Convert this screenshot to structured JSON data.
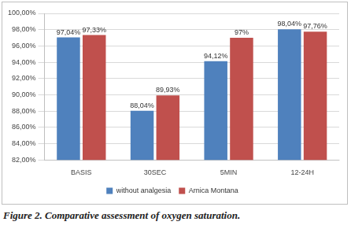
{
  "chart_data": {
    "type": "bar",
    "title": "Figure 2. Comparative assessment of oxygen saturation.",
    "categories": [
      "BASIS",
      "30SEC",
      "5MIN",
      "12-24H"
    ],
    "series": [
      {
        "name": "without analgesia",
        "color": "#4f81bd",
        "values": [
          97.04,
          88.04,
          94.12,
          98.04
        ],
        "value_labels": [
          "97,04%",
          "88,04%",
          "94,12%",
          "98,04%"
        ]
      },
      {
        "name": "Arnica Montana",
        "color": "#c0504d",
        "values": [
          97.33,
          89.93,
          97,
          97.76
        ],
        "value_labels": [
          "97,33%",
          "89,93%",
          "97%",
          "97,76%"
        ]
      }
    ],
    "ylim": [
      82,
      100
    ],
    "yticks": [
      {
        "value": 82,
        "label": "82,00%"
      },
      {
        "value": 84,
        "label": "84,00%"
      },
      {
        "value": 86,
        "label": "86,00%"
      },
      {
        "value": 88,
        "label": "88,00%"
      },
      {
        "value": 90,
        "label": "90,00%"
      },
      {
        "value": 92,
        "label": "92,00%"
      },
      {
        "value": 94,
        "label": "94,00%"
      },
      {
        "value": 96,
        "label": "96,00%"
      },
      {
        "value": 98,
        "label": "98,00%"
      },
      {
        "value": 100,
        "label": "100,00%"
      }
    ],
    "grid": true,
    "legend": "bottom",
    "data_labels": true
  }
}
